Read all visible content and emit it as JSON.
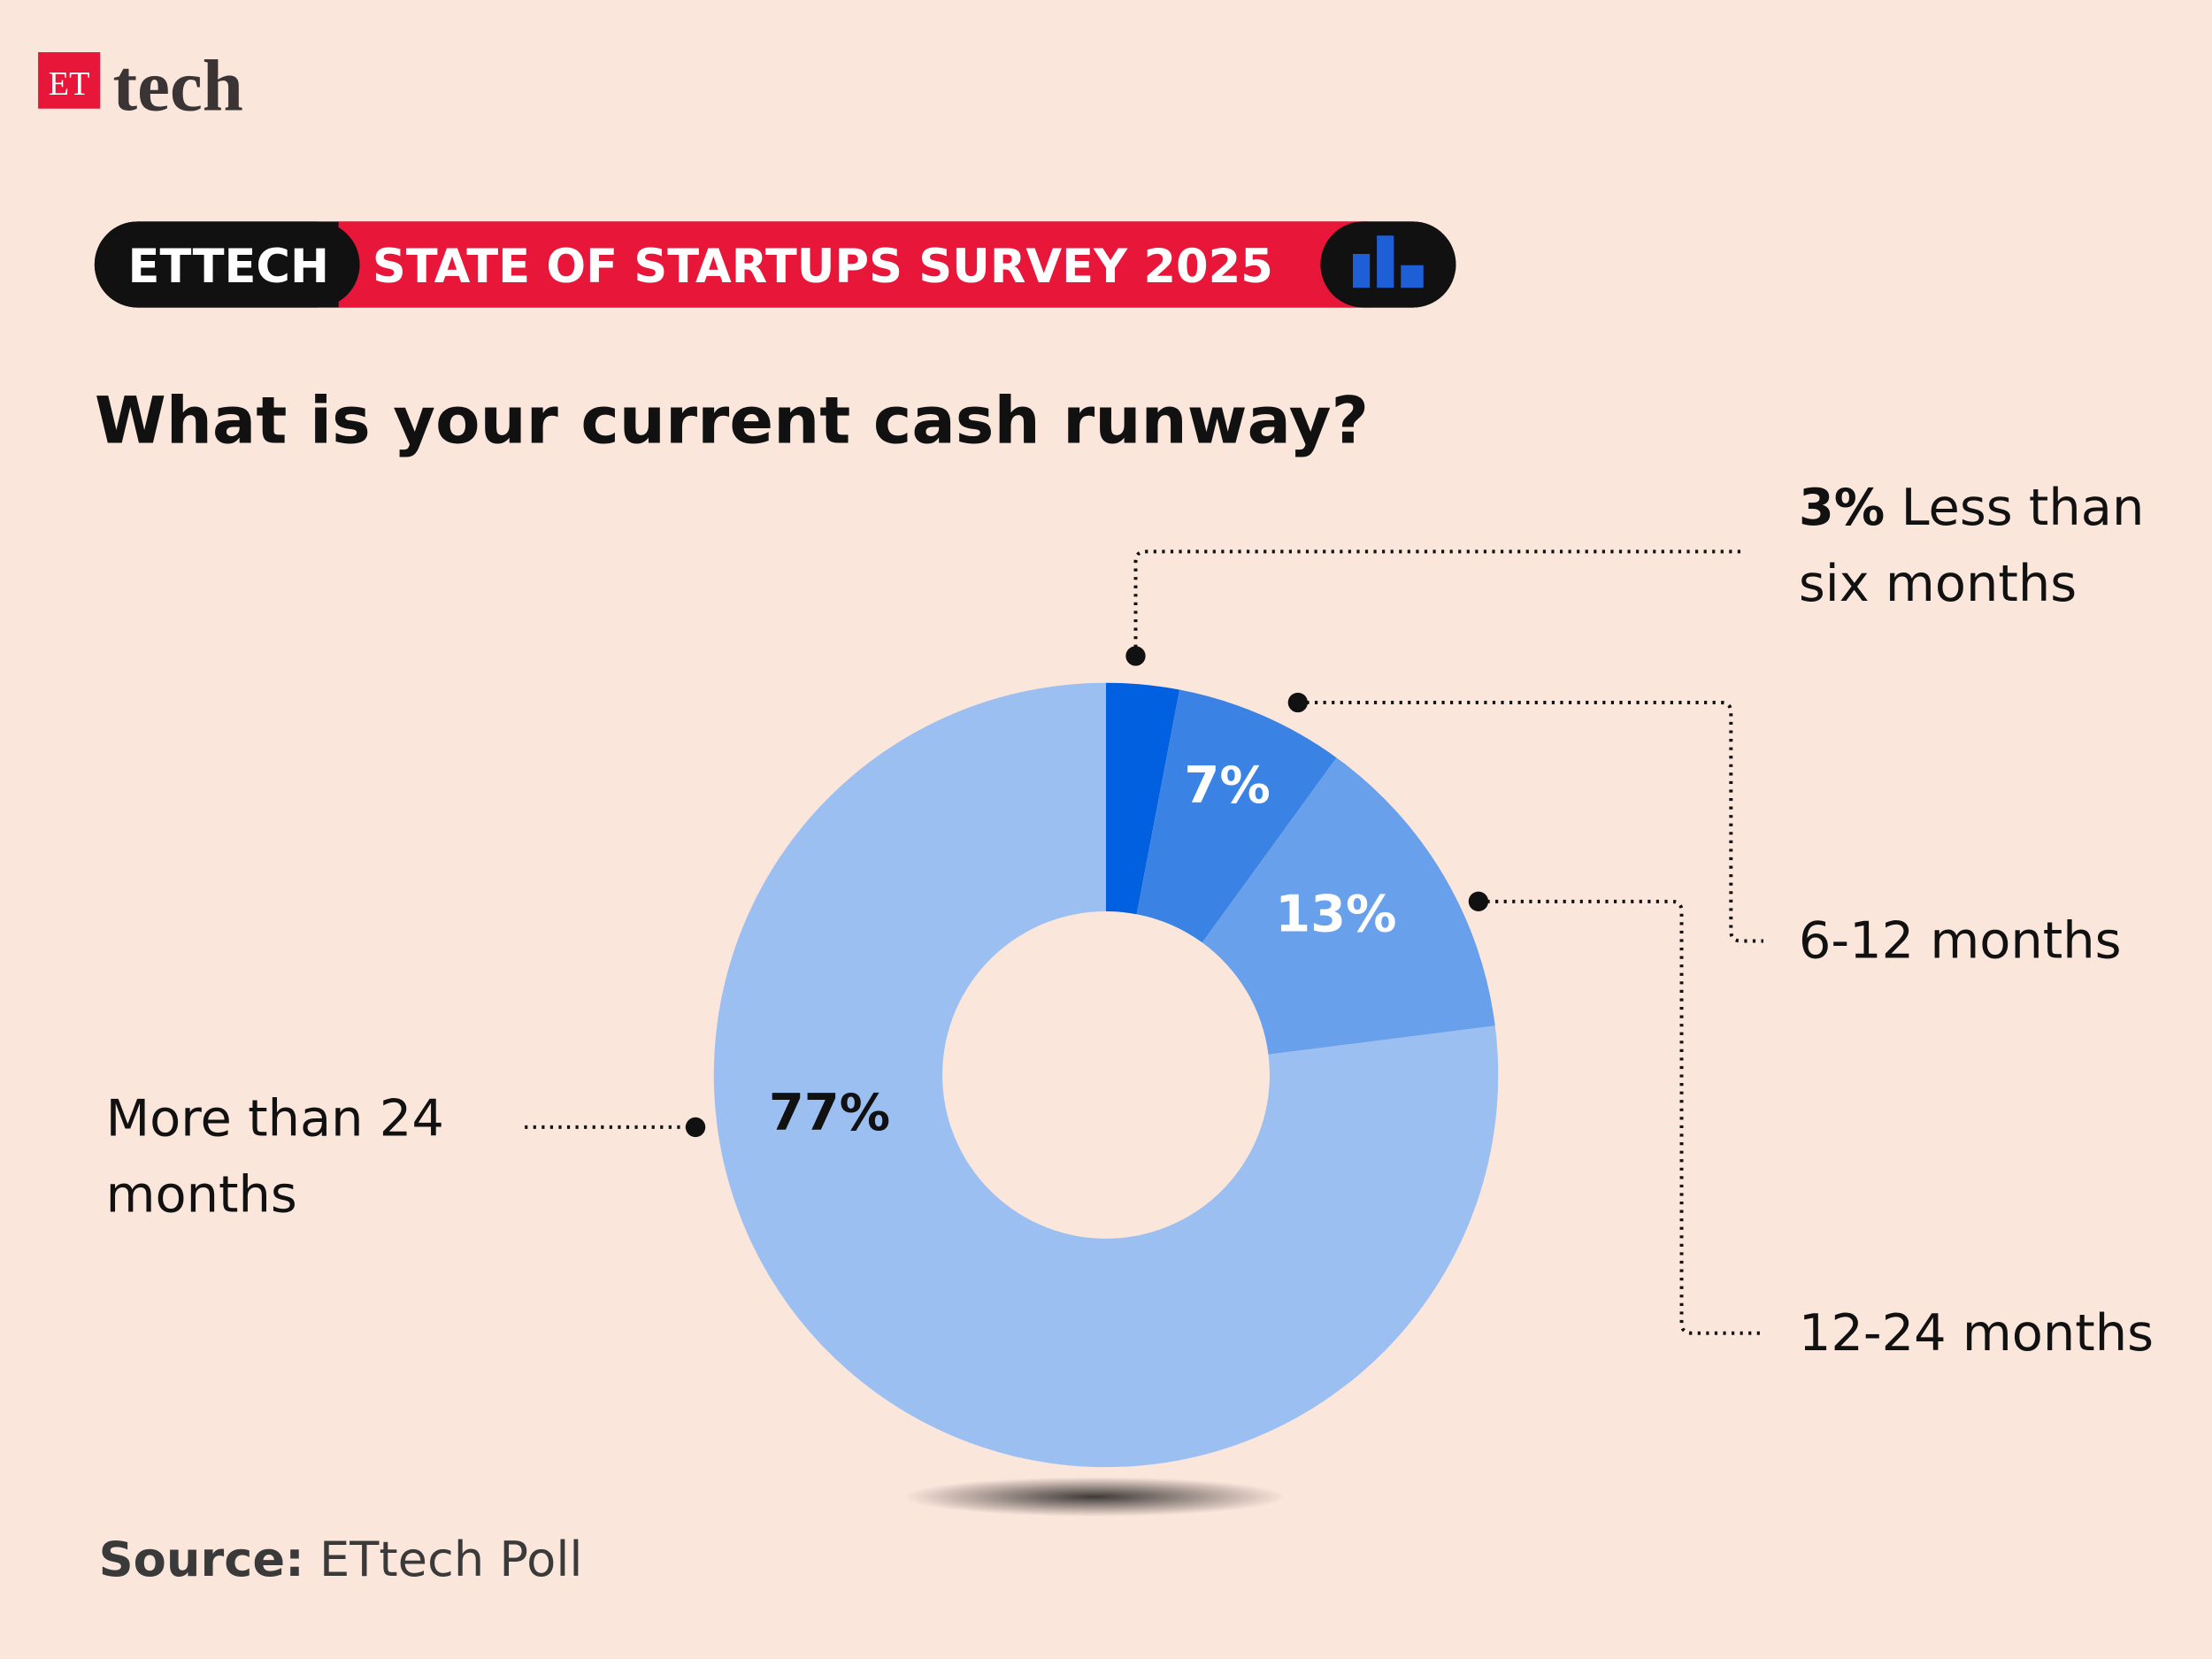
{
  "brand": {
    "et": "ET",
    "tech": "tech"
  },
  "banner": {
    "left": "ETTECH",
    "right": "STATE OF STARTUPS SURVEY 2025"
  },
  "source": {
    "label": "Source:",
    "text": "ETtech Poll"
  },
  "chart_data": {
    "type": "pie",
    "donut": true,
    "title": "What is your current cash runway?",
    "categories": [
      "Less than six months",
      "6-12 months",
      "12-24 months",
      "More than 24 months"
    ],
    "values": [
      3,
      7,
      13,
      77
    ],
    "value_labels": [
      "3%",
      "7%",
      "13%",
      "77%"
    ],
    "colors": [
      "#0060df",
      "#3a82e4",
      "#68a0ec",
      "#9cbff2"
    ]
  }
}
